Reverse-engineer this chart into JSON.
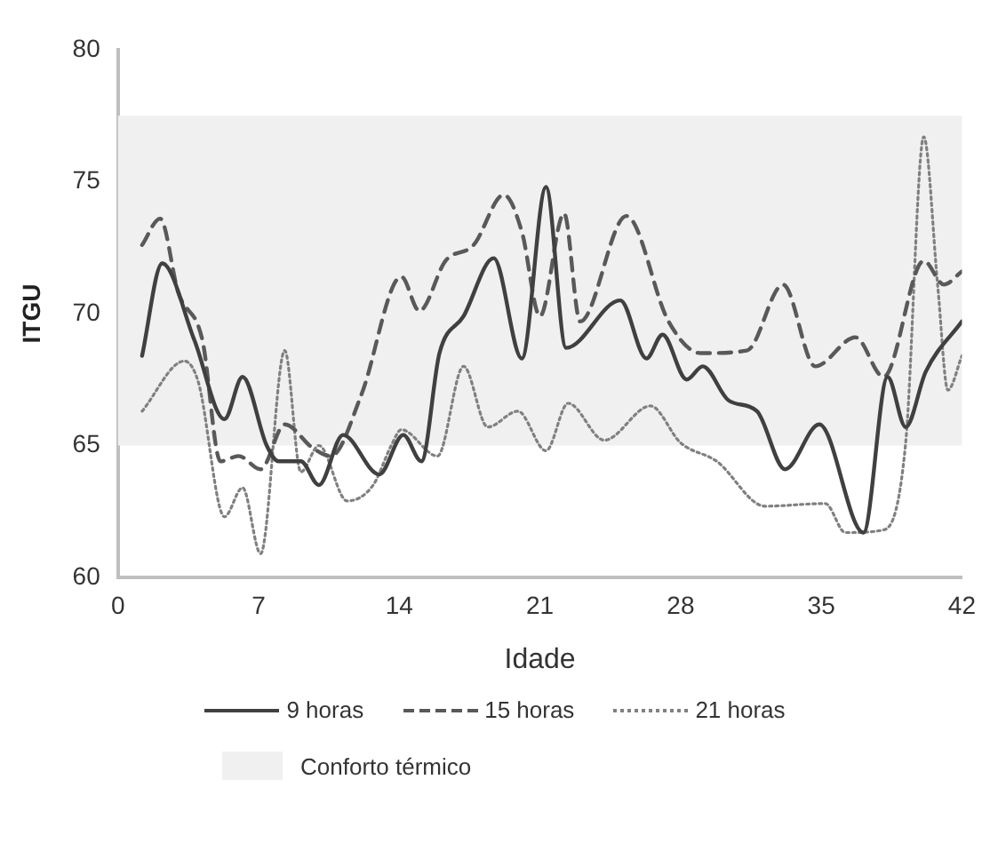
{
  "chart_data": {
    "type": "line",
    "xlabel": "Idade",
    "ylabel": "ITGU",
    "xlim": [
      0,
      42
    ],
    "xticks": [
      0,
      7,
      14,
      21,
      28,
      35,
      42
    ],
    "ylim": [
      60,
      80
    ],
    "yticks": [
      60,
      65,
      70,
      75,
      80
    ],
    "grid": false,
    "legend": "bottom",
    "marker": "none",
    "bands": [
      {
        "axis": "y",
        "from": 65,
        "to": 77.5,
        "label": "Conforto térmico",
        "color": "#f0f0f0"
      }
    ],
    "series": [
      {
        "name": "9 horas",
        "color": "#404040",
        "line_style": "solid",
        "x": [
          1.2,
          2.2,
          3.8,
          5.3,
          6.2,
          7.4,
          8.0,
          9.1,
          10.0,
          11.2,
          13.0,
          14.2,
          15.1,
          16.0,
          17.2,
          18.7,
          20.1,
          21.3,
          22.3,
          25.0,
          26.3,
          27.1,
          28.3,
          29.1,
          30.4,
          31.8,
          33.2,
          34.9,
          37.1,
          38.3,
          39.2,
          40.2,
          42.0
        ],
        "values": [
          68.4,
          71.9,
          69.0,
          66.0,
          67.6,
          65.0,
          64.4,
          64.4,
          63.5,
          65.4,
          63.9,
          65.4,
          64.4,
          68.5,
          69.9,
          72.1,
          68.3,
          74.8,
          68.7,
          70.5,
          68.3,
          69.2,
          67.5,
          68.0,
          66.7,
          66.3,
          64.1,
          65.8,
          61.7,
          67.6,
          65.7,
          67.8,
          69.7
        ]
      },
      {
        "name": "15 horas",
        "color": "#595959",
        "line_style": "dashed",
        "x": [
          1.2,
          2.1,
          3.0,
          4.2,
          5.1,
          6.0,
          7.1,
          8.3,
          9.7,
          10.6,
          12.1,
          14.1,
          15.0,
          16.3,
          17.7,
          19.2,
          20.1,
          21.0,
          22.2,
          23.0,
          25.3,
          27.4,
          29.0,
          31.3,
          33.1,
          34.7,
          36.7,
          38.1,
          40.1,
          41.1,
          42.0
        ],
        "values": [
          72.6,
          73.6,
          70.8,
          69.0,
          64.4,
          64.6,
          64.1,
          65.8,
          64.9,
          64.6,
          66.9,
          71.4,
          70.1,
          72.0,
          72.6,
          74.5,
          73.1,
          69.9,
          73.8,
          69.7,
          73.7,
          69.7,
          68.5,
          68.6,
          71.1,
          68.0,
          69.1,
          67.6,
          72.0,
          71.1,
          71.6
        ]
      },
      {
        "name": "21 horas",
        "color": "#808080",
        "line_style": "dotted",
        "x": [
          1.2,
          3.3,
          4.0,
          5.3,
          6.2,
          7.1,
          8.3,
          9.1,
          10.0,
          11.4,
          12.7,
          13.6,
          14.1,
          15.9,
          17.2,
          18.4,
          19.9,
          21.3,
          22.4,
          24.2,
          26.5,
          28.0,
          29.8,
          32.2,
          35.2,
          36.2,
          38.1,
          39.2,
          40.1,
          40.8,
          41.3,
          42.0
        ],
        "values": [
          66.3,
          68.2,
          67.4,
          62.3,
          63.4,
          60.9,
          68.6,
          64.0,
          65.0,
          62.9,
          63.5,
          65.0,
          65.6,
          64.6,
          68.0,
          65.7,
          66.3,
          64.8,
          66.6,
          65.2,
          66.5,
          65.1,
          64.4,
          62.7,
          62.8,
          61.7,
          61.8,
          65.1,
          76.7,
          71.0,
          67.1,
          68.4
        ]
      }
    ]
  }
}
